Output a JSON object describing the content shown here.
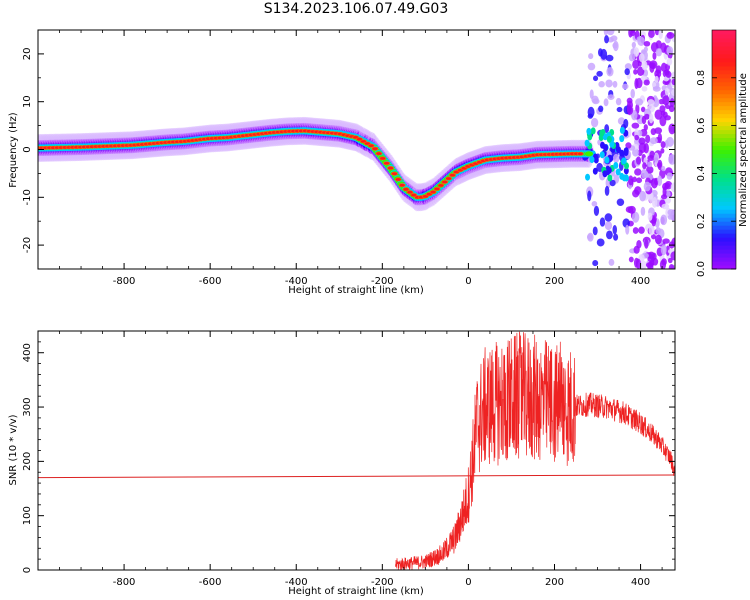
{
  "title": "S134.2023.106.07.49.G03",
  "colors": {
    "snr_line": "#ee2222",
    "reference_line": "#dd2222",
    "frame": "#000000",
    "colormap": [
      "#ffffff",
      "#9a0cff",
      "#2a10ff",
      "#00c8ff",
      "#00e08a",
      "#3ef000",
      "#ffd500",
      "#ff6600",
      "#ff1a1a",
      "#ff1a5c"
    ]
  },
  "chart_data": [
    {
      "type": "heatmap",
      "xlabel": "Height of straight line (km)",
      "ylabel": "Frequency (Hz)",
      "xlim": [
        -1000,
        480
      ],
      "ylim": [
        -25,
        25
      ],
      "x_ticks": [
        -800,
        -600,
        -400,
        -200,
        0,
        200,
        400
      ],
      "y_ticks": [
        -20,
        -10,
        0,
        10,
        20
      ],
      "ridge": {
        "x": [
          -1000,
          -900,
          -840,
          -780,
          -700,
          -660,
          -600,
          -560,
          -500,
          -460,
          -420,
          -380,
          -340,
          -300,
          -260,
          -220,
          -180,
          -150,
          -120,
          -110,
          -100,
          -80,
          -60,
          -30,
          0,
          40,
          80,
          120,
          160,
          200,
          240,
          280
        ],
        "freq": [
          0.3,
          0.5,
          0.7,
          0.9,
          1.5,
          1.7,
          2.3,
          2.5,
          3.1,
          3.5,
          3.8,
          3.9,
          3.6,
          3.3,
          2.5,
          0.5,
          -4,
          -8,
          -10,
          -10,
          -9.8,
          -8.8,
          -7.2,
          -4.8,
          -3.5,
          -2.2,
          -1.8,
          -1.6,
          -1.1,
          -1.0,
          -0.9,
          -0.9
        ]
      },
      "noise_region_x": [
        280,
        480
      ],
      "colorbar": {
        "label": "Normalized spectral amplitude",
        "range": [
          0,
          1
        ],
        "ticks": [
          "0.0",
          "0.2",
          "0.4",
          "0.6",
          "0.8"
        ]
      }
    },
    {
      "type": "line",
      "xlabel": "Height of straight line (km)",
      "ylabel": "SNR (10 * v/v)",
      "xlim": [
        -1000,
        480
      ],
      "ylim": [
        0,
        440
      ],
      "x_ticks": [
        -800,
        -600,
        -400,
        -200,
        0,
        200,
        400
      ],
      "y_ticks": [
        0,
        100,
        200,
        300,
        400
      ],
      "reference_line": {
        "x": [
          -1000,
          480
        ],
        "y": [
          170,
          175
        ]
      },
      "snr_envelope": {
        "x": [
          -170,
          -100,
          -60,
          -30,
          -10,
          0,
          10,
          20,
          40,
          80,
          120,
          160,
          200,
          240,
          280,
          320,
          360,
          400,
          440,
          470,
          480
        ],
        "y": [
          10,
          15,
          30,
          60,
          110,
          140,
          200,
          270,
          300,
          310,
          320,
          315,
          305,
          300,
          305,
          300,
          290,
          270,
          240,
          205,
          180
        ]
      }
    }
  ]
}
